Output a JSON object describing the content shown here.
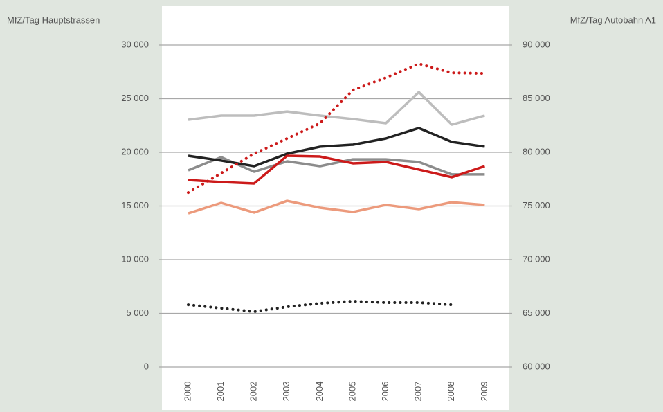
{
  "chart_data": {
    "type": "line",
    "y_label": "MfZ/Tag Hauptstrassen",
    "y2_label": "MfZ/Tag Autobahn A1",
    "categories": [
      "2000",
      "2001",
      "2002",
      "2003",
      "2004",
      "2005",
      "2006",
      "2007",
      "2008",
      "2009"
    ],
    "ylim": [
      0,
      30000
    ],
    "yticks": [
      0,
      {
        "value": 5000,
        "label": "5 000"
      },
      {
        "value": 10000,
        "label": "10 000"
      },
      {
        "value": 15000,
        "label": "15 000"
      },
      {
        "value": 20000,
        "label": "20 000"
      },
      {
        "value": 25000,
        "label": "25 000"
      },
      {
        "value": 30000,
        "label": "30 000"
      }
    ],
    "y2lim": [
      60000,
      90000
    ],
    "y2ticks": [
      {
        "value": 60000,
        "label": "60 000"
      },
      {
        "value": 65000,
        "label": "65 000"
      },
      {
        "value": 70000,
        "label": "70 000"
      },
      {
        "value": 75000,
        "label": "75 000"
      },
      {
        "value": 80000,
        "label": "80 000"
      },
      {
        "value": 85000,
        "label": "85 000"
      },
      {
        "value": 90000,
        "label": "90 000"
      }
    ],
    "grid": true,
    "series": [
      {
        "color": "#bdbdbd",
        "style": "solid",
        "values": [
          23030,
          23420,
          23420,
          23800,
          23420,
          23100,
          22710,
          25610,
          22580,
          23420
        ]
      },
      {
        "color": "#8c8c8c",
        "style": "solid",
        "values": [
          18320,
          19550,
          18190,
          19160,
          18710,
          19350,
          19350,
          19100,
          17940,
          17940
        ]
      },
      {
        "color": "#222222",
        "style": "solid",
        "values": [
          19680,
          19230,
          18710,
          19870,
          20520,
          20710,
          21290,
          22260,
          20970,
          20520
        ]
      },
      {
        "color": "#cc1a1a",
        "style": "solid",
        "values": [
          17420,
          17230,
          17100,
          19680,
          19610,
          18970,
          19100,
          18390,
          17680,
          18710
        ]
      },
      {
        "color": "#ec9a7c",
        "style": "solid",
        "values": [
          14320,
          15290,
          14390,
          15480,
          14840,
          14450,
          15100,
          14710,
          15350,
          15100
        ]
      },
      {
        "color": "#cc1a1a",
        "style": "dotted",
        "axis": "y2",
        "values": [
          76250,
          78060,
          79870,
          81290,
          82700,
          85800,
          86960,
          88250,
          87410,
          87350
        ]
      },
      {
        "color": "#222222",
        "style": "dotted",
        "axis": "y2",
        "values": [
          65800,
          65480,
          65160,
          65610,
          65930,
          66130,
          66000,
          66000,
          65800,
          null
        ]
      }
    ]
  }
}
